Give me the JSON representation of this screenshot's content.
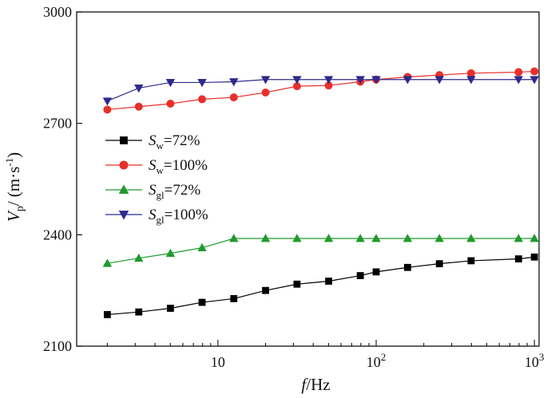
{
  "chart_data": {
    "type": "line",
    "title": "",
    "xlabel": {
      "var": "f",
      "unit": "/Hz"
    },
    "ylabel": {
      "var": "V",
      "sub": "p",
      "unit_prefix": "/ (m·s",
      "unit_exp": "-1",
      "unit_suffix": ")"
    },
    "xscale": "log",
    "xlim": [
      1.28,
      1070
    ],
    "ylim": [
      2100,
      3000
    ],
    "yticks": [
      2100,
      2400,
      2700,
      3000
    ],
    "xticks": [
      {
        "value": 10,
        "base": "10",
        "exp": ""
      },
      {
        "value": 100,
        "base": "10",
        "exp": "2"
      },
      {
        "value": 1000,
        "base": "10",
        "exp": "3"
      }
    ],
    "legend_position": "left-middle",
    "series": [
      {
        "name": "Sw=72%",
        "var": "S",
        "sub": "w",
        "suffix": "=72%",
        "color": "#000000",
        "marker": "square",
        "x": [
          2,
          3.16,
          5.01,
          7.94,
          12.6,
          20,
          31.6,
          50.1,
          79.4,
          100,
          158,
          251,
          398,
          794,
          1000
        ],
        "values": [
          2185,
          2192,
          2202,
          2218,
          2228,
          2250,
          2267,
          2275,
          2290,
          2300,
          2312,
          2322,
          2330,
          2335,
          2340
        ]
      },
      {
        "name": "Sw=100%",
        "var": "S",
        "sub": "w",
        "suffix": "=100%",
        "color": "#e8302a",
        "marker": "circle",
        "x": [
          2,
          3.16,
          5.01,
          7.94,
          12.6,
          20,
          31.6,
          50.1,
          79.4,
          100,
          158,
          251,
          398,
          794,
          1000
        ],
        "values": [
          2737,
          2745,
          2753,
          2765,
          2770,
          2783,
          2800,
          2802,
          2812,
          2818,
          2825,
          2830,
          2835,
          2838,
          2840
        ]
      },
      {
        "name": "Sgl=72%",
        "var": "S",
        "sub": "gl",
        "suffix": "=72%",
        "color": "#1f9a2e",
        "marker": "triangle-up",
        "x": [
          2,
          3.16,
          5.01,
          7.94,
          12.6,
          20,
          31.6,
          50.1,
          79.4,
          100,
          158,
          251,
          398,
          794,
          1000
        ],
        "values": [
          2323,
          2337,
          2350,
          2365,
          2390,
          2390,
          2390,
          2390,
          2390,
          2390,
          2390,
          2390,
          2390,
          2390,
          2390
        ]
      },
      {
        "name": "Sgl=100%",
        "var": "S",
        "sub": "gl",
        "suffix": "=100%",
        "color": "#2e2a8c",
        "marker": "triangle-down",
        "x": [
          2,
          3.16,
          5.01,
          7.94,
          12.6,
          20,
          31.6,
          50.1,
          79.4,
          100,
          158,
          251,
          398,
          794,
          1000
        ],
        "values": [
          2760,
          2795,
          2810,
          2810,
          2812,
          2818,
          2818,
          2818,
          2818,
          2818,
          2818,
          2818,
          2818,
          2818,
          2818
        ]
      }
    ]
  }
}
